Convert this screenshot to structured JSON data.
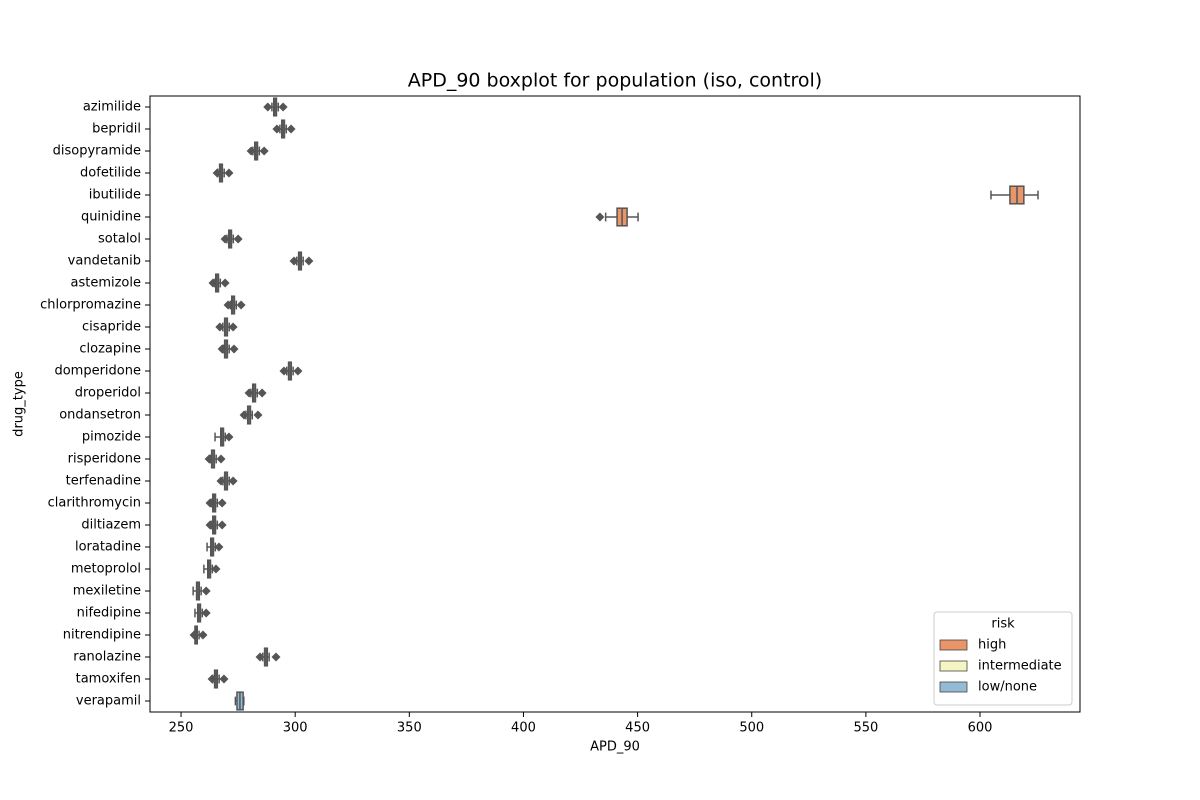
{
  "chart_data": {
    "type": "boxplot",
    "title": "APD_90 boxplot for population (iso, control)",
    "x_label": "APD_90",
    "y_label": "drug_type",
    "legend_title": "risk",
    "legend_position": "lower right",
    "xlim": [
      236.4,
      643.8
    ],
    "xticks": [
      250,
      300,
      350,
      400,
      450,
      500,
      550,
      600
    ],
    "categories": [
      "azimilide",
      "bepridil",
      "disopyramide",
      "dofetilide",
      "ibutilide",
      "quinidine",
      "sotalol",
      "vandetanib",
      "astemizole",
      "chlorpromazine",
      "cisapride",
      "clozapine",
      "domperidone",
      "droperidol",
      "ondansetron",
      "pimozide",
      "risperidone",
      "terfenadine",
      "clarithromycin",
      "diltiazem",
      "loratadine",
      "metoprolol",
      "mexiletine",
      "nifedipine",
      "nitrendipine",
      "ranolazine",
      "tamoxifen",
      "verapamil"
    ],
    "series": [
      {
        "name": "high",
        "color": "#e8956a",
        "values": [
          {
            "whislo": 289.8,
            "q1": 290.6,
            "med": 291.2,
            "q3": 291.8,
            "whishi": 292.6,
            "fliers": [
              288,
              294.7
            ]
          },
          {
            "whislo": 293.3,
            "q1": 294.1,
            "med": 294.7,
            "q3": 295.3,
            "whishi": 296.1,
            "fliers": [
              292,
              298.2
            ]
          },
          {
            "whislo": 281.5,
            "q1": 282.3,
            "med": 282.9,
            "q3": 283.5,
            "whishi": 284.3,
            "fliers": [
              280.7,
              286.4
            ]
          },
          {
            "whislo": 266.1,
            "q1": 266.9,
            "med": 267.5,
            "q3": 268.1,
            "whishi": 268.9,
            "fliers": [
              265.8,
              271
            ]
          },
          {
            "whislo": 604.8,
            "q1": 613.1,
            "med": 616.2,
            "q3": 619.2,
            "whishi": 625.4,
            "fliers": []
          },
          {
            "whislo": 436,
            "q1": 441,
            "med": 443.2,
            "q3": 445.4,
            "whishi": 450.2,
            "fliers": [
              433.5
            ]
          },
          {
            "whislo": 270.1,
            "q1": 270.9,
            "med": 271.5,
            "q3": 272.1,
            "whishi": 272.9,
            "fliers": [
              269.3,
              275
            ]
          },
          {
            "whislo": 300.7,
            "q1": 301.5,
            "med": 302.1,
            "q3": 302.7,
            "whishi": 303.5,
            "fliers": [
              299.5,
              306
            ]
          },
          null,
          null,
          null,
          null,
          null,
          null,
          null,
          null,
          null,
          null,
          null,
          null,
          null,
          null,
          null,
          null,
          null,
          null,
          null,
          null
        ]
      },
      {
        "name": "intermediate",
        "color": "#f5f5c4",
        "values": [
          null,
          null,
          null,
          null,
          null,
          null,
          null,
          null,
          {
            "whislo": 264.8,
            "q1": 265.2,
            "med": 265.8,
            "q3": 266.4,
            "whishi": 267.2,
            "fliers": [
              264,
              269.3
            ]
          },
          {
            "whislo": 271.6,
            "q1": 272.2,
            "med": 272.8,
            "q3": 273.4,
            "whishi": 274.2,
            "fliers": [
              270.6,
              276.3
            ]
          },
          {
            "whislo": 268.3,
            "q1": 269.1,
            "med": 269.7,
            "q3": 270.3,
            "whishi": 271.1,
            "fliers": [
              267,
              272.8
            ]
          },
          {
            "whislo": 268.5,
            "q1": 269.1,
            "med": 269.7,
            "q3": 270.3,
            "whishi": 271.1,
            "fliers": [
              268,
              273.2
            ]
          },
          {
            "whislo": 296.3,
            "q1": 297.1,
            "med": 297.7,
            "q3": 298.3,
            "whishi": 299.1,
            "fliers": [
              295.1,
              301.2
            ]
          },
          {
            "whislo": 280.6,
            "q1": 281.4,
            "med": 282,
            "q3": 282.6,
            "whishi": 283.4,
            "fliers": [
              279.8,
              285.5
            ]
          },
          {
            "whislo": 278.4,
            "q1": 279.2,
            "med": 279.8,
            "q3": 280.4,
            "whishi": 281.2,
            "fliers": [
              277.6,
              283.7
            ]
          },
          {
            "whislo": 264.9,
            "q1": 267.4,
            "med": 268,
            "q3": 268.6,
            "whishi": 269.4,
            "fliers": [
              271
            ]
          },
          {
            "whislo": 262.8,
            "q1": 263.4,
            "med": 264,
            "q3": 264.6,
            "whishi": 265.4,
            "fliers": [
              262.3,
              267.5
            ]
          },
          {
            "whislo": 268.3,
            "q1": 269.1,
            "med": 269.7,
            "q3": 270.3,
            "whishi": 271.1,
            "fliers": [
              267.5,
              272.8
            ]
          },
          null,
          null,
          null,
          null,
          null,
          null,
          null,
          null,
          null,
          null
        ]
      },
      {
        "name": "low/none",
        "color": "#93bbd3",
        "values": [
          null,
          null,
          null,
          null,
          null,
          null,
          null,
          null,
          null,
          null,
          null,
          null,
          null,
          null,
          null,
          null,
          null,
          null,
          {
            "whislo": 263.3,
            "q1": 263.9,
            "med": 264.5,
            "q3": 265.1,
            "whishi": 265.9,
            "fliers": [
              262.7,
              268
            ]
          },
          {
            "whislo": 263.3,
            "q1": 263.9,
            "med": 264.5,
            "q3": 265.1,
            "whishi": 265.9,
            "fliers": [
              262.7,
              268
            ]
          },
          {
            "whislo": 261.4,
            "q1": 263,
            "med": 263.6,
            "q3": 264.2,
            "whishi": 265,
            "fliers": [
              266.6
            ]
          },
          {
            "whislo": 260,
            "q1": 261.7,
            "med": 262.3,
            "q3": 262.9,
            "whishi": 263.7,
            "fliers": [
              265.3
            ]
          },
          {
            "whislo": 255.3,
            "q1": 256.8,
            "med": 257.4,
            "q3": 258,
            "whishi": 258.8,
            "fliers": [
              261
            ]
          },
          {
            "whislo": 256.1,
            "q1": 257.3,
            "med": 257.9,
            "q3": 258.5,
            "whishi": 259.3,
            "fliers": [
              261
            ]
          },
          {
            "whislo": 256,
            "q1": 256.1,
            "med": 256.6,
            "q3": 257.1,
            "whishi": 257.9,
            "fliers": [
              255.7,
              259.6
            ]
          },
          {
            "whislo": 285.8,
            "q1": 286.6,
            "med": 287.2,
            "q3": 287.8,
            "whishi": 288.6,
            "fliers": [
              284.6,
              291.6
            ]
          },
          {
            "whislo": 263.9,
            "q1": 264.7,
            "med": 265.3,
            "q3": 265.9,
            "whishi": 266.7,
            "fliers": [
              263.6,
              268.8
            ]
          },
          {
            "whislo": 273.8,
            "q1": 274.5,
            "med": 275.8,
            "q3": 277.2,
            "whishi": 277.5,
            "fliers": []
          }
        ]
      }
    ]
  }
}
